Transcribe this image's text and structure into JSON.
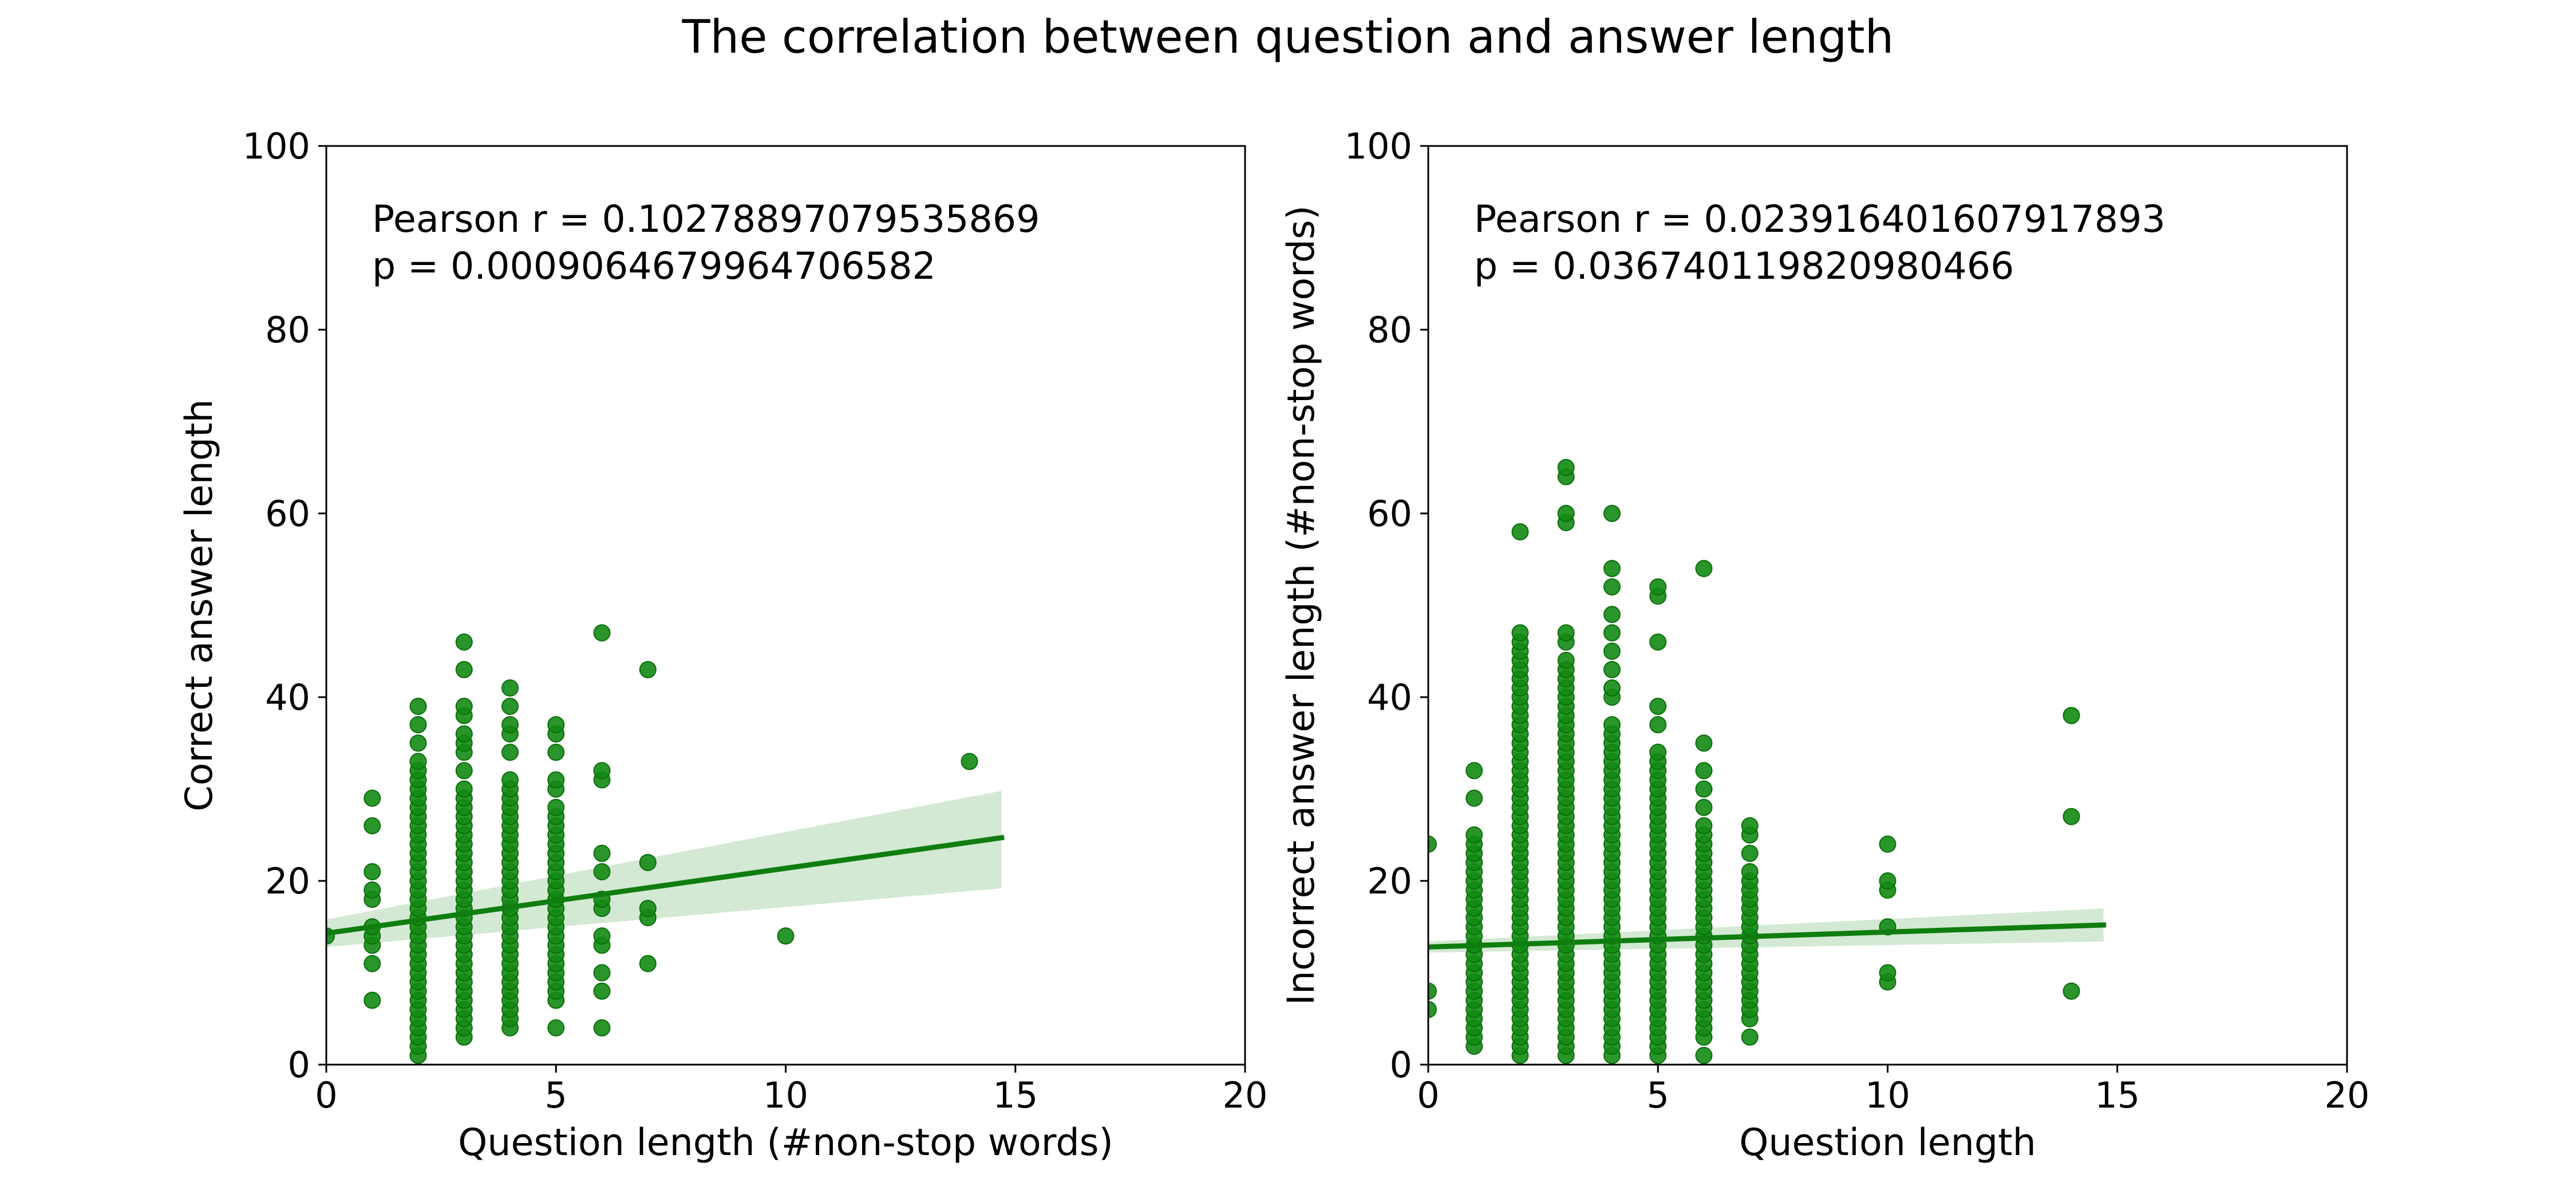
{
  "figure": {
    "title": "The correlation between question and answer length"
  },
  "colors": {
    "point": "#138a13",
    "point_edge": "#0a6e0a",
    "line": "#0f7d0f",
    "band": "#c8e4c8"
  },
  "chart_data": [
    {
      "type": "scatter",
      "xlabel": "Question length (#non-stop words)",
      "ylabel": "Correct answer length",
      "xlim": [
        0,
        20
      ],
      "ylim": [
        0,
        100
      ],
      "xticks": [
        0,
        5,
        10,
        15,
        20
      ],
      "yticks": [
        0,
        20,
        40,
        60,
        80,
        100
      ],
      "annotation": [
        "Pearson r = 0.10278897079535869",
        "p = 0.0009064679964706582"
      ],
      "regression": {
        "x_range": [
          0,
          14.7
        ],
        "line": [
          14.3,
          24.7
        ],
        "upper": [
          15.8,
          29.8
        ],
        "lower": [
          12.8,
          19.2
        ]
      },
      "columns": [
        {
          "x": 0,
          "y": [
            14
          ]
        },
        {
          "x": 1,
          "y": [
            7,
            11,
            13,
            14,
            15,
            18,
            19,
            21,
            26,
            29
          ]
        },
        {
          "x": 2,
          "y": [
            1,
            2,
            3,
            4,
            5,
            6,
            7,
            8,
            9,
            10,
            11,
            12,
            13,
            14,
            15,
            16,
            17,
            18,
            19,
            20,
            21,
            22,
            23,
            24,
            25,
            26,
            27,
            28,
            29,
            30,
            31,
            32,
            33,
            35,
            37,
            39
          ]
        },
        {
          "x": 3,
          "y": [
            3,
            4,
            5,
            6,
            7,
            8,
            9,
            10,
            11,
            12,
            13,
            14,
            15,
            16,
            17,
            18,
            19,
            20,
            21,
            22,
            23,
            24,
            25,
            26,
            27,
            28,
            29,
            30,
            32,
            34,
            35,
            36,
            38,
            39,
            43,
            46
          ]
        },
        {
          "x": 4,
          "y": [
            4,
            5,
            6,
            7,
            8,
            9,
            10,
            11,
            12,
            13,
            14,
            15,
            16,
            17,
            18,
            19,
            20,
            21,
            22,
            23,
            24,
            25,
            26,
            27,
            28,
            29,
            30,
            31,
            34,
            36,
            37,
            39,
            41
          ]
        },
        {
          "x": 5,
          "y": [
            4,
            7,
            8,
            9,
            10,
            11,
            12,
            13,
            14,
            15,
            16,
            17,
            18,
            19,
            20,
            21,
            22,
            23,
            24,
            25,
            26,
            27,
            28,
            30,
            31,
            34,
            36,
            37
          ]
        },
        {
          "x": 6,
          "y": [
            4,
            8,
            10,
            13,
            14,
            17,
            18,
            21,
            23,
            31,
            32,
            47
          ]
        },
        {
          "x": 7,
          "y": [
            11,
            16,
            17,
            22,
            43
          ]
        },
        {
          "x": 10,
          "y": [
            14
          ]
        },
        {
          "x": 14,
          "y": [
            33
          ]
        }
      ]
    },
    {
      "type": "scatter",
      "xlabel": "Question length",
      "ylabel": "Incorrect answer length (#non-stop words)",
      "xlim": [
        0,
        20
      ],
      "ylim": [
        0,
        100
      ],
      "xticks": [
        0,
        5,
        10,
        15,
        20
      ],
      "yticks": [
        0,
        20,
        40,
        60,
        80,
        100
      ],
      "annotation": [
        "Pearson r = 0.023916401607917893",
        "p = 0.036740119820980466"
      ],
      "regression": {
        "x_range": [
          0,
          14.7
        ],
        "line": [
          12.8,
          15.2
        ],
        "upper": [
          13.4,
          17.0
        ],
        "lower": [
          12.2,
          13.4
        ]
      },
      "columns": [
        {
          "x": 0,
          "y": [
            6,
            8,
            24
          ]
        },
        {
          "x": 1,
          "y": [
            2,
            3,
            4,
            5,
            6,
            7,
            8,
            9,
            10,
            11,
            12,
            13,
            14,
            15,
            16,
            17,
            18,
            19,
            20,
            21,
            22,
            23,
            24,
            25,
            29,
            32
          ]
        },
        {
          "x": 2,
          "y": [
            1,
            2,
            3,
            4,
            5,
            6,
            7,
            8,
            9,
            10,
            11,
            12,
            13,
            14,
            15,
            16,
            17,
            18,
            19,
            20,
            21,
            22,
            23,
            24,
            25,
            26,
            27,
            28,
            29,
            30,
            31,
            32,
            33,
            34,
            35,
            36,
            37,
            38,
            39,
            40,
            41,
            42,
            43,
            44,
            45,
            46,
            47,
            58
          ]
        },
        {
          "x": 3,
          "y": [
            1,
            2,
            3,
            4,
            5,
            6,
            7,
            8,
            9,
            10,
            11,
            12,
            13,
            14,
            15,
            16,
            17,
            18,
            19,
            20,
            21,
            22,
            23,
            24,
            25,
            26,
            27,
            28,
            29,
            30,
            31,
            32,
            33,
            34,
            35,
            36,
            37,
            38,
            39,
            40,
            41,
            42,
            43,
            44,
            46,
            47,
            59,
            60,
            64,
            65
          ]
        },
        {
          "x": 4,
          "y": [
            1,
            2,
            3,
            4,
            5,
            6,
            7,
            8,
            9,
            10,
            11,
            12,
            13,
            14,
            15,
            16,
            17,
            18,
            19,
            20,
            21,
            22,
            23,
            24,
            25,
            26,
            27,
            28,
            29,
            30,
            31,
            32,
            33,
            34,
            35,
            36,
            37,
            40,
            41,
            43,
            45,
            47,
            49,
            52,
            54,
            60
          ]
        },
        {
          "x": 5,
          "y": [
            1,
            2,
            3,
            4,
            5,
            6,
            7,
            8,
            9,
            10,
            11,
            12,
            13,
            14,
            15,
            16,
            17,
            18,
            19,
            20,
            21,
            22,
            23,
            24,
            25,
            26,
            27,
            28,
            29,
            30,
            31,
            32,
            33,
            34,
            37,
            39,
            46,
            51,
            52
          ]
        },
        {
          "x": 6,
          "y": [
            1,
            3,
            4,
            5,
            6,
            7,
            8,
            9,
            10,
            11,
            12,
            13,
            14,
            15,
            16,
            17,
            18,
            19,
            20,
            21,
            22,
            23,
            24,
            25,
            26,
            28,
            30,
            32,
            35,
            54
          ]
        },
        {
          "x": 7,
          "y": [
            3,
            5,
            6,
            7,
            8,
            9,
            10,
            11,
            12,
            13,
            14,
            15,
            16,
            17,
            18,
            19,
            20,
            21,
            23,
            25,
            26
          ]
        },
        {
          "x": 10,
          "y": [
            9,
            10,
            15,
            19,
            20,
            24
          ]
        },
        {
          "x": 14,
          "y": [
            8,
            27,
            38
          ]
        }
      ]
    }
  ]
}
